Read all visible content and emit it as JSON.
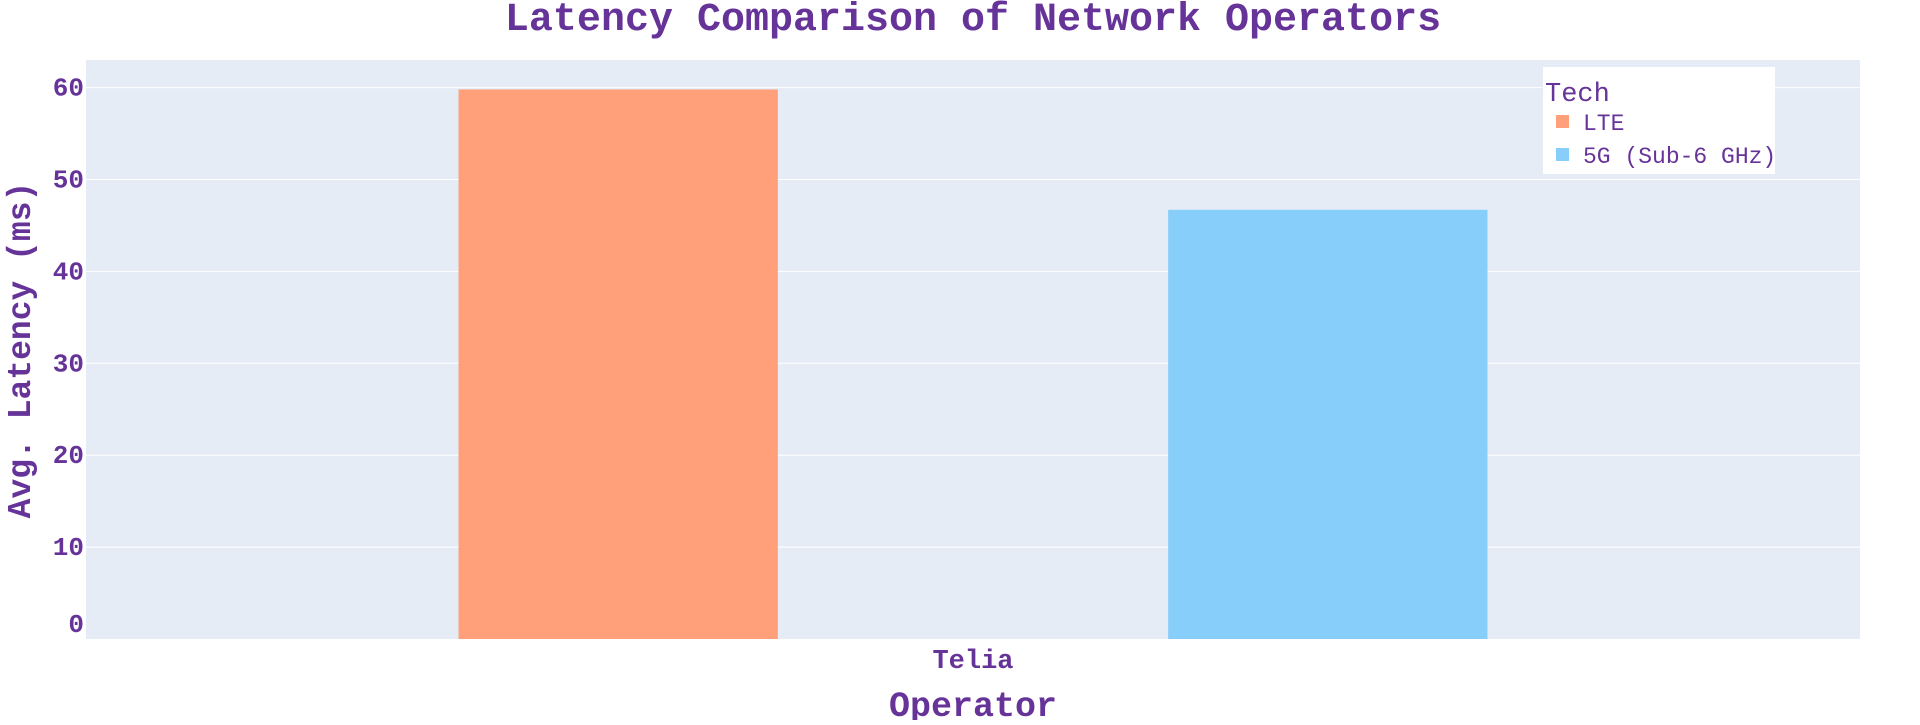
{
  "chart_data": {
    "type": "bar",
    "title": "Latency Comparison of Network Operators",
    "xlabel": "Operator",
    "ylabel": "Avg. Latency (ms)",
    "categories": [
      "Telia"
    ],
    "series": [
      {
        "name": "LTE",
        "values": [
          59.8
        ],
        "color": "#FFA07A"
      },
      {
        "name": "5G (Sub-6 GHz)",
        "values": [
          46.7
        ],
        "color": "#87CEFA"
      }
    ],
    "ylim": [
      0,
      63
    ],
    "yticks": [
      0,
      10,
      20,
      30,
      40,
      50,
      60
    ],
    "legend_title": "Tech",
    "legend_position": "top-right",
    "grid": true,
    "colors": {
      "text": "#663399",
      "plot_background": "#E5ECF6",
      "grid": "#FFFFFF",
      "legend_background": "#FFFFFF"
    }
  }
}
